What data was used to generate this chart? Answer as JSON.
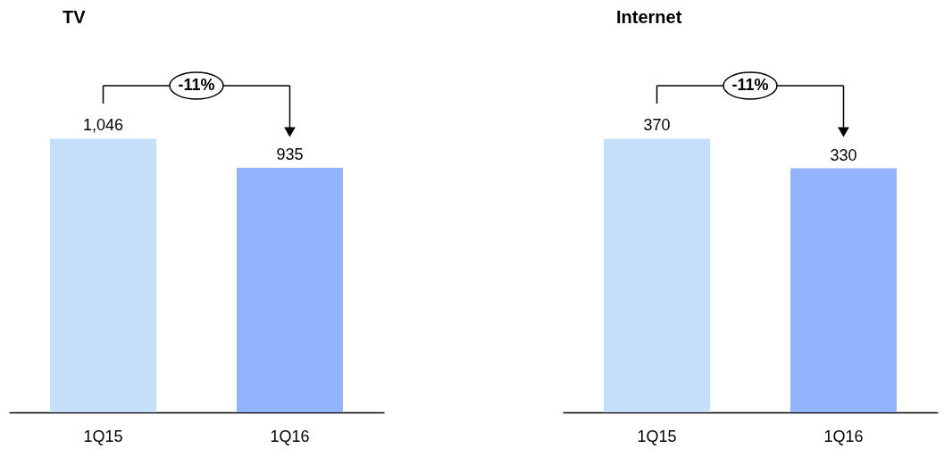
{
  "chart_data": [
    {
      "type": "bar",
      "title": "TV",
      "categories": [
        "1Q15",
        "1Q16"
      ],
      "values": [
        1046,
        935
      ],
      "value_labels": [
        "1,046",
        "935"
      ],
      "colors": [
        "#c5dff8",
        "#94b3fd"
      ],
      "annotations": [
        "-11%"
      ]
    },
    {
      "type": "bar",
      "title": "Internet",
      "categories": [
        "1Q15",
        "1Q16"
      ],
      "values": [
        370,
        330
      ],
      "value_labels": [
        "370",
        "330"
      ],
      "colors": [
        "#c5dff8",
        "#94b3fd"
      ],
      "annotations": [
        "-11%"
      ]
    }
  ]
}
